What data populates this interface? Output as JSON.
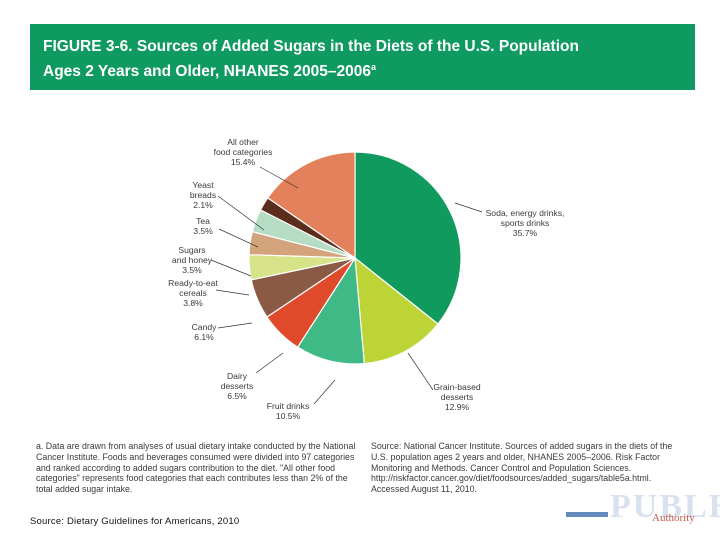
{
  "figure": {
    "title_line1": "FIGURE 3-6. Sources of Added Sugars in the Diets of the U.S. Population",
    "title_line2": "Ages 2 Years and Older, NHANES 2005–2006",
    "title_sup": "a"
  },
  "chart_data": {
    "type": "pie",
    "title": "Sources of Added Sugars in the Diets of the U.S. Population Ages 2 Years and Older, NHANES 2005–2006",
    "unit": "%",
    "start_angle_deg": 0,
    "direction": "clockwise",
    "slices": [
      {
        "name": "Soda, energy drinks, sports drinks",
        "label_lines": [
          "Soda, energy drinks,",
          "sports drinks"
        ],
        "value": 35.7,
        "value_label": "35.7%",
        "color": "#109a5e"
      },
      {
        "name": "Grain-based desserts",
        "label_lines": [
          "Grain-based",
          "desserts"
        ],
        "value": 12.9,
        "value_label": "12.9%",
        "color": "#bcd435"
      },
      {
        "name": "Fruit drinks",
        "label_lines": [
          "Fruit drinks"
        ],
        "value": 10.5,
        "value_label": "10.5%",
        "color": "#3fb986"
      },
      {
        "name": "Dairy desserts",
        "label_lines": [
          "Dairy",
          "desserts"
        ],
        "value": 6.5,
        "value_label": "6.5%",
        "color": "#df4a2b"
      },
      {
        "name": "Candy",
        "label_lines": [
          "Candy"
        ],
        "value": 6.1,
        "value_label": "6.1%",
        "color": "#8a5a45"
      },
      {
        "name": "Ready-to-eat cereals",
        "label_lines": [
          "Ready-to-eat",
          "cereals"
        ],
        "value": 3.8,
        "value_label": "3.8%",
        "color": "#d7e388"
      },
      {
        "name": "Sugars and honey",
        "label_lines": [
          "Sugars",
          "and honey"
        ],
        "value": 3.5,
        "value_label": "3.5%",
        "color": "#d3a37c"
      },
      {
        "name": "Tea",
        "label_lines": [
          "Tea"
        ],
        "value": 3.5,
        "value_label": "3.5%",
        "color": "#b6dcc6"
      },
      {
        "name": "Yeast breads",
        "label_lines": [
          "Yeast",
          "breads"
        ],
        "value": 2.1,
        "value_label": "2.1%",
        "color": "#5a2d1c"
      },
      {
        "name": "All other food categories",
        "label_lines": [
          "All other",
          "food categories"
        ],
        "value": 15.4,
        "value_label": "15.4%",
        "color": "#e2815b"
      }
    ]
  },
  "footnotes": {
    "note_a": "a. Data are drawn from analyses of usual dietary intake conducted by the National Cancer Institute. Foods and beverages consumed were divided into 97 categories and ranked according to added sugars contribution to the diet. \"All other food categories\" represents food categories that each contributes less than 2% of the total added sugar intake.",
    "source": "Source: National Cancer Institute. Sources of added sugars in the diets of the U.S. population ages 2 years and older, NHANES 2005–2006. Risk Factor Monitoring and Methods. Cancer Control and Population Sciences. http://riskfactor.cancer.gov/diet/foodsources/added_sugars/table5a.html. Accessed August 11, 2010."
  },
  "credit": "Source: Dietary Guidelines for Americans, 2010",
  "logo": {
    "letters": "PUBLH",
    "tagline": "Authority"
  }
}
